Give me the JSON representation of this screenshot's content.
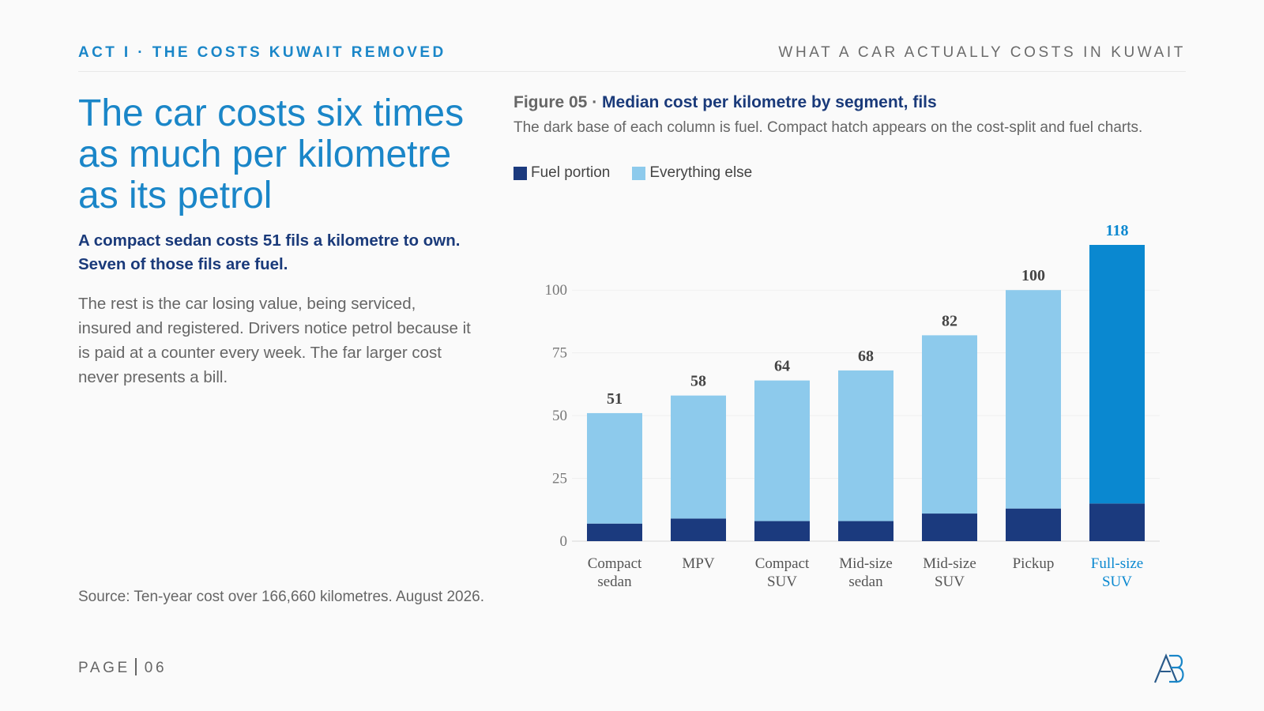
{
  "header": {
    "kicker_left": "ACT I · THE COSTS KUWAIT REMOVED",
    "kicker_right": "WHAT A CAR ACTUALLY COSTS IN KUWAIT"
  },
  "headline": "The car costs six times as much per kilometre as its petrol",
  "lede": "A compact sedan costs 51 fils a kilometre to own. Seven of those fils are fuel.",
  "body": "The rest is the car losing value, being serviced, insured and registered. Drivers notice petrol because it is paid at a counter every week. The far larger cost never presents a bill.",
  "source": "Source: Ten-year cost over 166,660 kilometres. August 2026.",
  "footer": {
    "page_word": "PAGE",
    "page_number": "06",
    "logo_icon": "ab-monogram-logo-icon"
  },
  "colors": {
    "accent": "#1a86c8",
    "navy": "#1a3a7a",
    "fuel": "#1b3a7e",
    "rest": "#8dcaec",
    "highlight": "#0a88d0"
  },
  "chart_data": {
    "type": "bar",
    "stacked": true,
    "figure_number": "Figure 05 ·",
    "title": "Median cost per kilometre by segment, fils",
    "subtitle": "The dark base of each column is fuel. Compact hatch appears on the cost-split and fuel charts.",
    "categories": [
      "Compact sedan",
      "MPV",
      "Compact SUV",
      "Mid-size sedan",
      "Mid-size SUV",
      "Pickup",
      "Full-size SUV"
    ],
    "series": [
      {
        "name": "Fuel portion",
        "values": [
          7,
          9,
          8,
          8,
          11,
          13,
          15
        ]
      },
      {
        "name": "Everything else",
        "values": [
          44,
          49,
          56,
          60,
          71,
          87,
          103
        ]
      }
    ],
    "totals": [
      51,
      58,
      64,
      68,
      82,
      100,
      118
    ],
    "highlight_category": "Full-size SUV",
    "ylim": [
      0,
      118
    ],
    "yticks": [
      0,
      25,
      50,
      75,
      100
    ],
    "grid": true,
    "legend_position": "top-left"
  }
}
